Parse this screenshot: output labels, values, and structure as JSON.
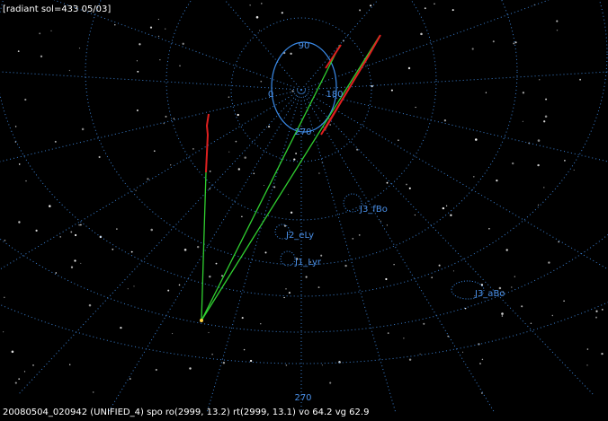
{
  "header": {
    "title": "[radiant sol=433 05/03]"
  },
  "scale_labels": {
    "top": "90",
    "left": "0",
    "right": "180",
    "bottom": "270",
    "horizon": "270"
  },
  "showers": [
    {
      "label": "J3_fBo"
    },
    {
      "label": "J2_eLy"
    },
    {
      "label": "J1_Lyr"
    },
    {
      "label": "J3_aBo"
    }
  ],
  "footer": {
    "text": "20080504_020942 (UNIFIED_4) spo ro(2999, 13.2) rt(2999, 13.1) vo 64.2 vg 62.9"
  }
}
